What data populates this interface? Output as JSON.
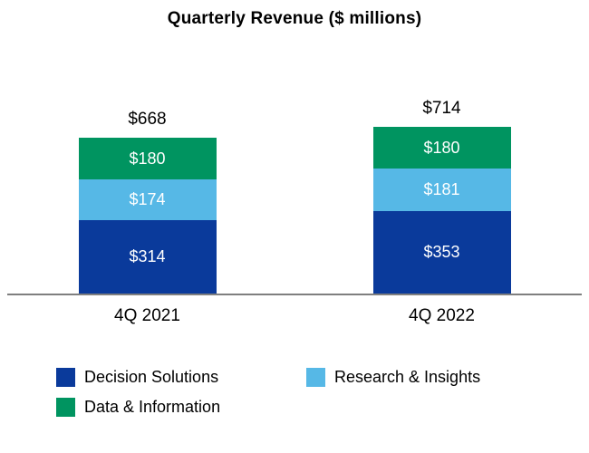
{
  "title": "Quarterly Revenue ($ millions)",
  "chart_data": {
    "type": "bar",
    "stacked": true,
    "title": "Quarterly Revenue ($ millions)",
    "categories": [
      "4Q 2021",
      "4Q 2022"
    ],
    "series": [
      {
        "name": "Decision Solutions",
        "color": "#0a3a9b",
        "values": [
          314,
          353
        ]
      },
      {
        "name": "Research & Insights",
        "color": "#56b8e6",
        "values": [
          174,
          181
        ]
      },
      {
        "name": "Data & Information",
        "color": "#009460",
        "values": [
          180,
          180
        ]
      }
    ],
    "totals": [
      668,
      714
    ],
    "value_prefix": "$",
    "ylim": [
      0,
      714
    ],
    "grid": false,
    "legend_position": "bottom",
    "axis_line_color": "#7f7f7f"
  },
  "legend": {
    "items": [
      {
        "label": "Decision Solutions",
        "color": "#0a3a9b"
      },
      {
        "label": "Research & Insights",
        "color": "#56b8e6"
      },
      {
        "label": "Data & Information",
        "color": "#009460"
      }
    ]
  }
}
